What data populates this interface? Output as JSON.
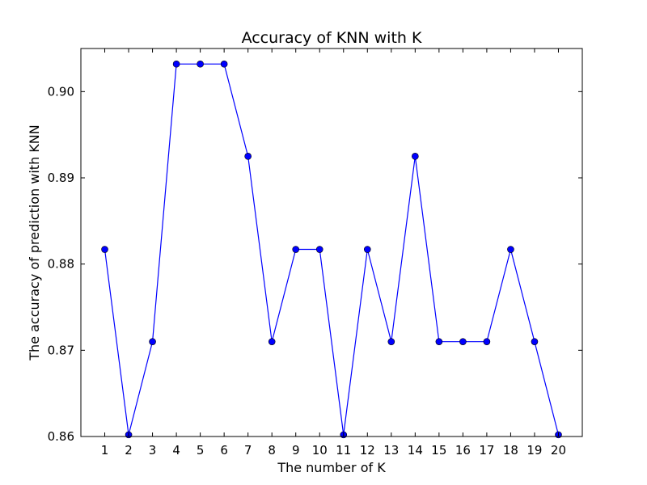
{
  "chart_data": {
    "type": "line",
    "title": "Accuracy of KNN with K",
    "xlabel": "The number of K",
    "ylabel": "The accuracy of prediction with KNN",
    "x": [
      1,
      2,
      3,
      4,
      5,
      6,
      7,
      8,
      9,
      10,
      11,
      12,
      13,
      14,
      15,
      16,
      17,
      18,
      19,
      20
    ],
    "series": [
      {
        "values": [
          0.8817,
          0.8602,
          0.871,
          0.9032,
          0.9032,
          0.9032,
          0.8925,
          0.871,
          0.8817,
          0.8817,
          0.8602,
          0.8817,
          0.871,
          0.8925,
          0.871,
          0.871,
          0.871,
          0.8817,
          0.871,
          0.8602
        ],
        "color": "#0000ff",
        "marker": "circle"
      }
    ],
    "xlim": [
      0,
      21
    ],
    "ylim": [
      0.86,
      0.905
    ],
    "xticks": [
      "1",
      "2",
      "3",
      "4",
      "5",
      "6",
      "7",
      "8",
      "9",
      "10",
      "11",
      "12",
      "13",
      "14",
      "15",
      "16",
      "17",
      "18",
      "19",
      "20"
    ],
    "yticks": [
      "0.86",
      "0.87",
      "0.88",
      "0.89",
      "0.90"
    ],
    "grid": false,
    "legend": "none"
  }
}
